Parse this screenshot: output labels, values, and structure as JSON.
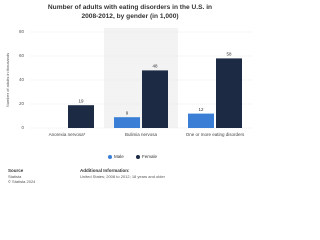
{
  "chart_data": {
    "type": "bar",
    "title": "Number of adults with eating disorders in the U.S. in 2008-2012, by gender (in 1,000)",
    "y_label": "Number of adults in thousands",
    "categories": [
      "Anorexia nervosa*",
      "Bulimia nervosa",
      "One or more eating disorders"
    ],
    "series": [
      {
        "name": "Male",
        "color": "#3a7fd5",
        "values": [
          null,
          9,
          12
        ]
      },
      {
        "name": "Female",
        "color": "#1c2a44",
        "values": [
          19,
          48,
          58
        ]
      }
    ],
    "ylim": [
      0,
      80
    ],
    "yticks": [
      0,
      20,
      40,
      60,
      80
    ],
    "grid": true,
    "source_title": "Source",
    "source": "Statista",
    "copyright": "© Statista 2024",
    "info_title": "Additional Information:",
    "info": "United States; 2008 to 2012; 18 years and older"
  }
}
